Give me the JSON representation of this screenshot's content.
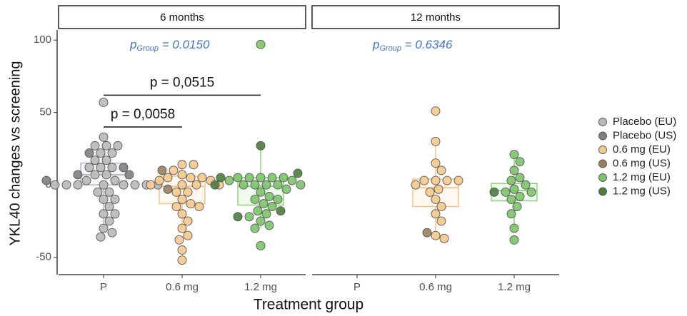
{
  "chart_data": {
    "type": "box",
    "ylabel": "YKL40 changes vs screening",
    "xlabel": "Treatment group",
    "ylim": [
      -62,
      107
    ],
    "yticks": [
      -50,
      0,
      50,
      100
    ],
    "categories": [
      "P",
      "0.6 mg",
      "1.2 mg"
    ],
    "box_colors": [
      "#b8b8c8",
      "#f5c48a",
      "#8fd27e"
    ],
    "series": [
      {
        "name": "Placebo (EU)",
        "color": "#b9b9b9"
      },
      {
        "name": "Placebo (US)",
        "color": "#7f7f7f"
      },
      {
        "name": "0.6 mg (EU)",
        "color": "#f6c98c"
      },
      {
        "name": "0.6 mg (US)",
        "color": "#9a7f5f"
      },
      {
        "name": "1.2 mg (EU)",
        "color": "#7cc46a"
      },
      {
        "name": "1.2 mg (US)",
        "color": "#4b7d3d"
      }
    ],
    "facets": [
      {
        "title": "6 months",
        "annotation": {
          "p": "p",
          "sub": "Group",
          "text": " = 0.0150"
        },
        "brackets": [
          {
            "y": 40,
            "label": "p = 0,0058"
          },
          {
            "y": 62,
            "label": "p = 0,0515"
          }
        ],
        "boxes": [
          {
            "whisker_low": -33,
            "q1": 0,
            "median": 7,
            "q3": 15,
            "whisker_high": 33
          },
          {
            "whisker_low": -30,
            "q1": -13,
            "median": -1,
            "q3": 6,
            "whisker_high": 14
          },
          {
            "whisker_low": -30,
            "q1": -14,
            "median": -1,
            "q3": 5,
            "whisker_high": 27
          }
        ],
        "points": [
          [
            [
              57,
              33,
              27,
              27,
              27,
              22,
              22,
              17,
              17,
              12,
              12,
              12,
              7,
              7,
              3,
              3,
              0,
              0,
              0,
              0,
              0,
              0,
              0,
              0,
              -5,
              -5,
              -10,
              -10,
              -15,
              -20,
              -20,
              -25,
              -30,
              -33,
              -36
            ],
            [],
            []
          ],
          [
            [
              22,
              12,
              7,
              7,
              3
            ],
            [],
            []
          ],
          [
            [],
            [
              14,
              14,
              10,
              7,
              5,
              5,
              5,
              3,
              3,
              0,
              0,
              0,
              0,
              -5,
              -5,
              -10,
              -13,
              -15,
              -15,
              -20,
              -25,
              -30,
              -35,
              -38,
              -45,
              -52
            ],
            []
          ],
          [
            [],
            [
              10,
              -3
            ],
            []
          ],
          [
            [],
            [],
            [
              97,
              5,
              5,
              5,
              5,
              5,
              3,
              3,
              0,
              0,
              0,
              0,
              0,
              -3,
              -5,
              -8,
              -10,
              -10,
              -13,
              -15,
              -18,
              -20,
              -22,
              -25,
              -28,
              -30,
              -42
            ]
          ],
          [
            [],
            [],
            [
              27,
              8,
              5,
              0,
              -18,
              -22
            ]
          ]
        ]
      },
      {
        "title": "12 months",
        "annotation": {
          "p": "p",
          "sub": "Group",
          "text": " = 0.6346"
        },
        "brackets": [],
        "boxes": [
          null,
          {
            "whisker_low": -37,
            "q1": -15,
            "median": -2,
            "q3": 4,
            "whisker_high": 30
          },
          {
            "whisker_low": -30,
            "q1": -11,
            "median": -4,
            "q3": 1,
            "whisker_high": 21
          }
        ],
        "points": [
          [
            [],
            [],
            []
          ],
          [
            [],
            [],
            []
          ],
          [
            [],
            [
              51,
              30,
              15,
              10,
              3,
              3,
              3,
              3,
              0,
              -3,
              -5,
              -10,
              -15,
              -20,
              -25,
              -35,
              -37
            ],
            []
          ],
          [
            [],
            [
              -33
            ],
            []
          ],
          [
            [],
            [],
            [
              21,
              16,
              10,
              5,
              3,
              0,
              -3,
              -5,
              -5,
              -8,
              -10,
              -15,
              -20,
              -30,
              -38
            ]
          ],
          [
            [],
            [],
            [
              -5
            ]
          ]
        ]
      }
    ]
  }
}
